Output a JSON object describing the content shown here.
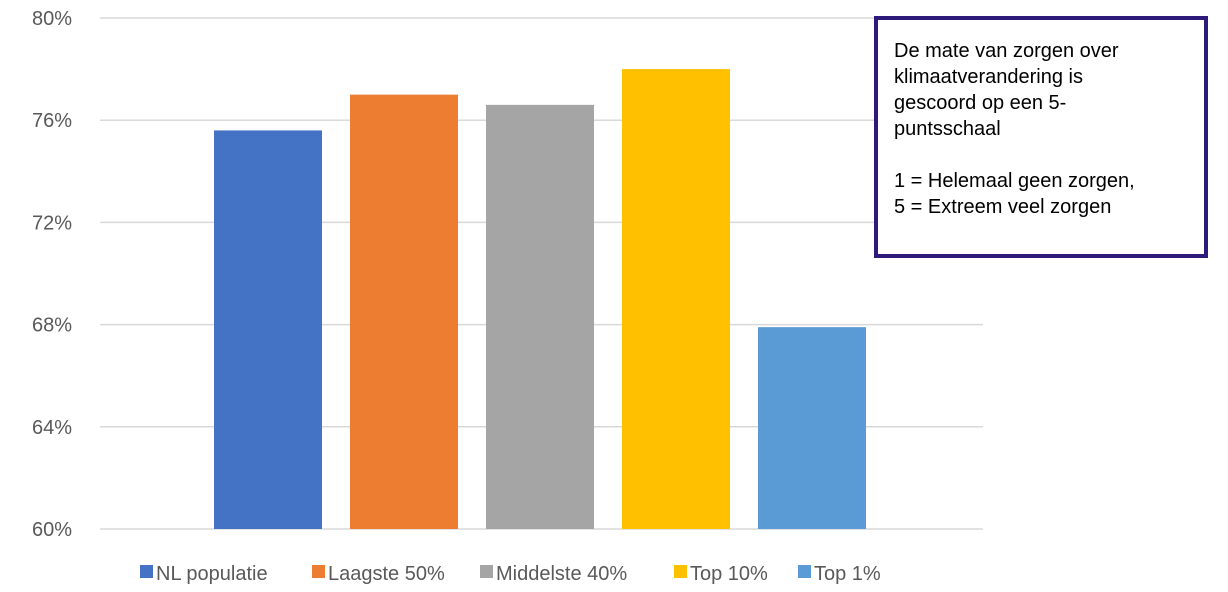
{
  "chart_data": {
    "type": "bar",
    "categories": [
      "NL populatie",
      "Laagste 50%",
      "Middelste 40%",
      "Top 10%",
      "Top 1%"
    ],
    "values": [
      75.6,
      77.0,
      76.6,
      78.0,
      67.9
    ],
    "ylim": [
      60,
      80
    ],
    "yticks": [
      60,
      64,
      68,
      72,
      76,
      80
    ],
    "ytick_labels": [
      "60%",
      "64%",
      "68%",
      "72%",
      "76%",
      "80%"
    ],
    "colors": [
      "#4472c4",
      "#ed7d31",
      "#a5a5a5",
      "#ffc000",
      "#5b9bd5"
    ],
    "grid": true,
    "legend_position": "bottom"
  },
  "note": {
    "lines": [
      "De mate van zorgen over",
      "klimaatverandering is",
      "gescoord op een 5-",
      "puntsschaal",
      "",
      "1 = Helemaal geen zorgen,",
      "5 = Extreem veel zorgen"
    ],
    "border_color": "#2e1a7a"
  }
}
